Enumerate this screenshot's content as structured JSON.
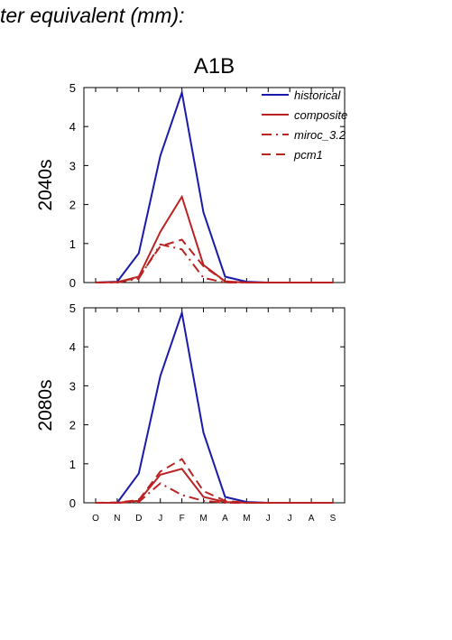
{
  "page": {
    "title": "ter equivalent (mm):"
  },
  "colors": {
    "historical": "#1a1aaa",
    "scenario": "#bb2222",
    "axis": "#000000"
  },
  "chart_data": [
    {
      "type": "line",
      "title": "A1B",
      "ylabel": "2040s",
      "ylim": [
        0,
        5
      ],
      "yticks": [
        0,
        1,
        2,
        3,
        4,
        5
      ],
      "categories": [
        "O",
        "N",
        "D",
        "J",
        "F",
        "M",
        "A",
        "M",
        "J",
        "J",
        "A",
        "S"
      ],
      "show_xticklabels": false,
      "legend_position": "top-right",
      "series": [
        {
          "name": "historical",
          "color": "#1a1aaa",
          "dash": "solid",
          "values": [
            0,
            0.02,
            0.75,
            3.25,
            4.87,
            1.8,
            0.15,
            0.02,
            0,
            0,
            0,
            0
          ]
        },
        {
          "name": "composite",
          "color": "#bb2222",
          "dash": "solid",
          "values": [
            0,
            0.01,
            0.15,
            1.3,
            2.2,
            0.45,
            0.03,
            0,
            0,
            0,
            0,
            0
          ]
        },
        {
          "name": "miroc_3.2",
          "color": "#bb2222",
          "dash": "dashdot",
          "values": [
            0,
            0,
            0.1,
            0.98,
            0.85,
            0.12,
            0,
            0,
            0,
            0,
            0,
            0
          ]
        },
        {
          "name": "pcm1",
          "color": "#bb2222",
          "dash": "dash",
          "values": [
            0,
            0.01,
            0.13,
            0.93,
            1.1,
            0.42,
            0.03,
            0,
            0,
            0,
            0,
            0
          ]
        }
      ]
    },
    {
      "type": "line",
      "title": "",
      "ylabel": "2080s",
      "ylim": [
        0,
        5
      ],
      "yticks": [
        0,
        1,
        2,
        3,
        4,
        5
      ],
      "categories": [
        "O",
        "N",
        "D",
        "J",
        "F",
        "M",
        "A",
        "M",
        "J",
        "J",
        "A",
        "S"
      ],
      "show_xticklabels": true,
      "series": [
        {
          "color": "#1a1aaa",
          "dash": "solid",
          "values": [
            0,
            0,
            0.75,
            3.25,
            4.87,
            1.8,
            0.15,
            0.02,
            0,
            0,
            0,
            0
          ]
        },
        {
          "color": "#bb2222",
          "dash": "solid",
          "values": [
            0,
            0,
            0.05,
            0.72,
            0.87,
            0.15,
            0.02,
            0,
            0,
            0,
            0,
            0
          ]
        },
        {
          "color": "#bb2222",
          "dash": "dashdot",
          "values": [
            0,
            0,
            0.02,
            0.5,
            0.2,
            0.05,
            0,
            0,
            0,
            0,
            0,
            0
          ]
        },
        {
          "color": "#bb2222",
          "dash": "dash",
          "values": [
            0,
            0.01,
            0.07,
            0.8,
            1.12,
            0.3,
            0.05,
            0,
            0,
            0,
            0,
            0
          ]
        }
      ]
    }
  ]
}
